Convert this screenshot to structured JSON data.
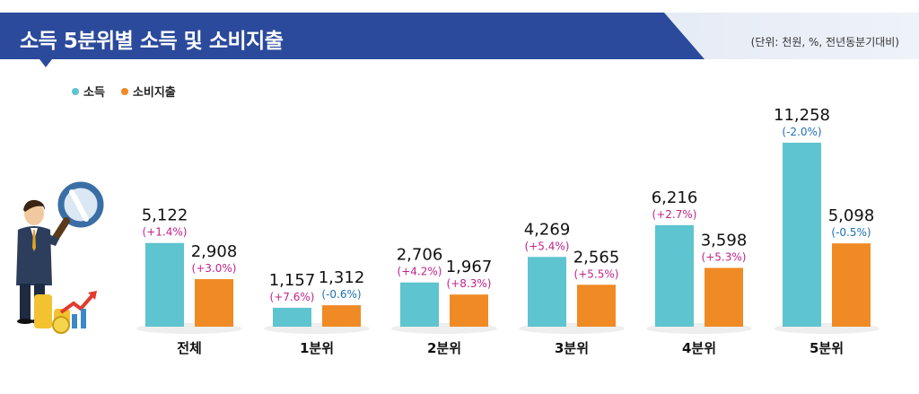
{
  "header": {
    "title": "소득 5분위별 소득 및 소비지출",
    "unit": "(단위: 천원, %, 전년동분기대비)"
  },
  "colors": {
    "banner": "#2b4a9b",
    "income": "#5ec4cf",
    "spending": "#f08a24",
    "positive_label": "#c2238a",
    "negative_label": "#1f6fb5"
  },
  "chart_data": {
    "type": "bar",
    "categories": [
      "전체",
      "1분위",
      "2분위",
      "3분위",
      "4분위",
      "5분위"
    ],
    "series": [
      {
        "name": "소득",
        "values": [
          5122,
          1157,
          2706,
          4269,
          6216,
          11258
        ],
        "value_labels": [
          "5,122",
          "1,157",
          "2,706",
          "4,269",
          "6,216",
          "11,258"
        ],
        "changes": [
          "(+1.4%)",
          "(+7.6%)",
          "(+4.2%)",
          "(+5.4%)",
          "(+2.7%)",
          "(-2.0%)"
        ]
      },
      {
        "name": "소비지출",
        "values": [
          2908,
          1312,
          1967,
          2565,
          3598,
          5098
        ],
        "value_labels": [
          "2,908",
          "1,312",
          "1,967",
          "2,565",
          "3,598",
          "5,098"
        ],
        "changes": [
          "(+3.0%)",
          "(-0.6%)",
          "(+8.3%)",
          "(+5.5%)",
          "(+5.3%)",
          "(-0.5%)"
        ]
      }
    ]
  }
}
